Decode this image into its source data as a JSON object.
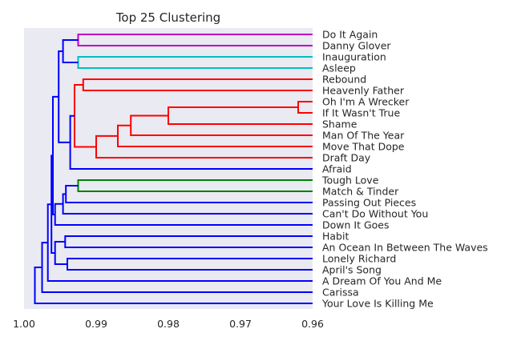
{
  "chart_data": {
    "type": "dendrogram",
    "title": "Top 25 Clustering",
    "orientation": "left",
    "xlim": [
      1.0,
      0.96
    ],
    "ticks": [
      1.0,
      0.99,
      0.98,
      0.97,
      0.96
    ],
    "tick_labels": [
      "1.00",
      "0.99",
      "0.98",
      "0.97",
      "0.96"
    ],
    "leaves": [
      "Do It Again",
      "Danny Glover",
      "Inauguration",
      "Asleep",
      "Rebound",
      "Heavenly Father",
      "Oh I'm A Wrecker",
      "If It Wasn't True",
      "Shame",
      "Man Of The Year",
      "Move That Dope",
      "Draft Day",
      "Afraid",
      "Tough Love",
      "Match & Tinder",
      "Passing Out Pieces",
      "Can't Do Without You",
      "Down It Goes",
      "Habit",
      "An Ocean In Between The Waves",
      "Lonely Richard",
      "April's Song",
      "A Dream Of You And Me",
      "Carissa",
      "Your Love Is Killing Me"
    ],
    "merges": [
      {
        "id": "A",
        "left": "Do It Again",
        "right": "Danny Glover",
        "height": 0.9925,
        "color": "#bf00bf"
      },
      {
        "id": "B",
        "left": "Inauguration",
        "right": "Asleep",
        "height": 0.9925,
        "color": "#00bfbf"
      },
      {
        "id": "AB",
        "left": "A",
        "right": "B",
        "height": 0.9946,
        "color": "#0000ff"
      },
      {
        "id": "C",
        "left": "Oh I'm A Wrecker",
        "right": "If It Wasn't True",
        "height": 0.962,
        "color": "#ff0000"
      },
      {
        "id": "D",
        "left": "C",
        "right": "Shame",
        "height": 0.98,
        "color": "#ff0000"
      },
      {
        "id": "E",
        "left": "D",
        "right": "Man Of The Year",
        "height": 0.9852,
        "color": "#ff0000"
      },
      {
        "id": "F",
        "left": "E",
        "right": "Move That Dope",
        "height": 0.987,
        "color": "#ff0000"
      },
      {
        "id": "G",
        "left": "F",
        "right": "Draft Day",
        "height": 0.99,
        "color": "#ff0000"
      },
      {
        "id": "H",
        "left": "Rebound",
        "right": "Heavenly Father",
        "height": 0.9918,
        "color": "#ff0000"
      },
      {
        "id": "I",
        "left": "H",
        "right": "G",
        "height": 0.993,
        "color": "#ff0000"
      },
      {
        "id": "J",
        "left": "I",
        "right": "Afraid",
        "height": 0.9936,
        "color": "#0000ff"
      },
      {
        "id": "K",
        "left": "AB",
        "right": "J",
        "height": 0.9952,
        "color": "#0000ff"
      },
      {
        "id": "L",
        "left": "Tough Love",
        "right": "Match & Tinder",
        "height": 0.9925,
        "color": "#008000"
      },
      {
        "id": "M",
        "left": "L",
        "right": "Passing Out Pieces",
        "height": 0.9942,
        "color": "#0000ff"
      },
      {
        "id": "N",
        "left": "M",
        "right": "Can't Do Without You",
        "height": 0.9946,
        "color": "#0000ff"
      },
      {
        "id": "O",
        "left": "N",
        "right": "Down It Goes",
        "height": 0.9957,
        "color": "#0000ff"
      },
      {
        "id": "P",
        "left": "K",
        "right": "O",
        "height": 0.996,
        "color": "#0000ff"
      },
      {
        "id": "Q",
        "left": "Habit",
        "right": "An Ocean In Between The Waves",
        "height": 0.9943,
        "color": "#0000ff"
      },
      {
        "id": "R",
        "left": "Lonely Richard",
        "right": "April's Song",
        "height": 0.994,
        "color": "#0000ff"
      },
      {
        "id": "S",
        "left": "Q",
        "right": "R",
        "height": 0.9957,
        "color": "#0000ff"
      },
      {
        "id": "T",
        "left": "P",
        "right": "S",
        "height": 0.9962,
        "color": "#0000ff"
      },
      {
        "id": "U",
        "left": "T",
        "right": "A Dream Of You And Me",
        "height": 0.9967,
        "color": "#0000ff"
      },
      {
        "id": "V",
        "left": "U",
        "right": "Carissa",
        "height": 0.9975,
        "color": "#0000ff"
      },
      {
        "id": "W",
        "left": "V",
        "right": "Your Love Is Killing Me",
        "height": 0.9985,
        "color": "#0000ff"
      }
    ]
  }
}
